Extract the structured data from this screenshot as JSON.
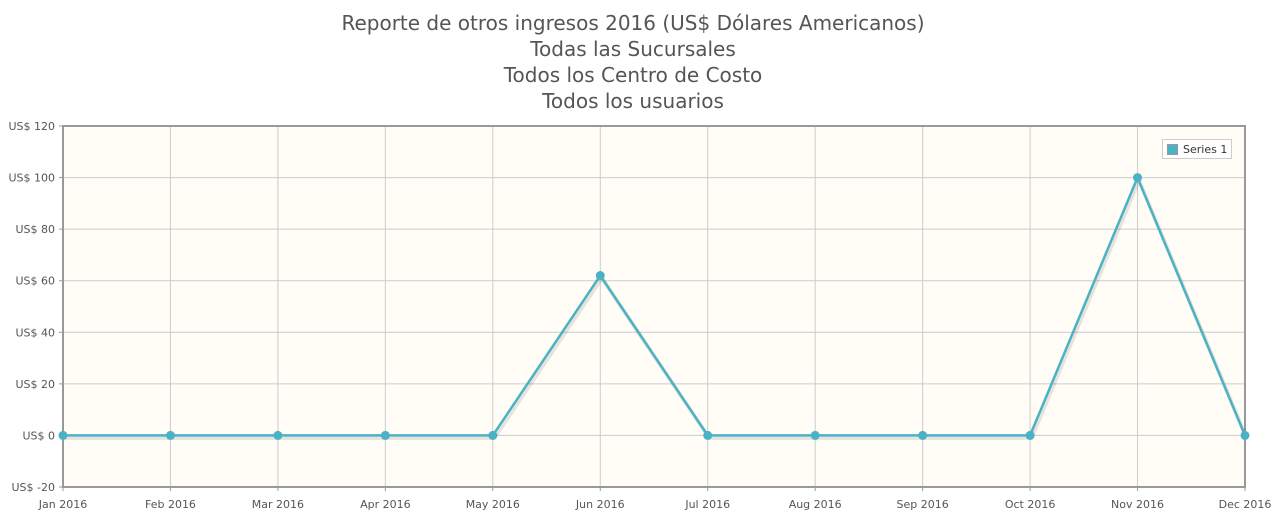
{
  "titles": [
    "Reporte de otros ingresos 2016 (US$ Dólares Americanos)",
    "Todas las Sucursales",
    "Todos los Centro de Costo",
    "Todos los usuarios"
  ],
  "colors": {
    "series": "#4bb2c5",
    "plot_background": "#fffdf6",
    "grid": "#cccccc",
    "border": "#999999"
  },
  "chart_data": {
    "type": "line",
    "title": "Reporte de otros ingresos 2016 (US$ Dólares Americanos)",
    "categories": [
      "Jan 2016",
      "Feb 2016",
      "Mar 2016",
      "Apr 2016",
      "May 2016",
      "Jun 2016",
      "Jul 2016",
      "Aug 2016",
      "Sep 2016",
      "Oct 2016",
      "Nov 2016",
      "Dec 2016"
    ],
    "y_ticks": [
      "US$ -20",
      "US$ 0",
      "US$ 20",
      "US$ 40",
      "US$ 60",
      "US$ 80",
      "US$ 100",
      "US$ 120"
    ],
    "ylim": [
      -20,
      120
    ],
    "grid": true,
    "legend_position": "top-right",
    "series": [
      {
        "name": "Series 1",
        "values": [
          0,
          0,
          0,
          0,
          0,
          62,
          0,
          0,
          0,
          0,
          100,
          0
        ]
      }
    ]
  }
}
